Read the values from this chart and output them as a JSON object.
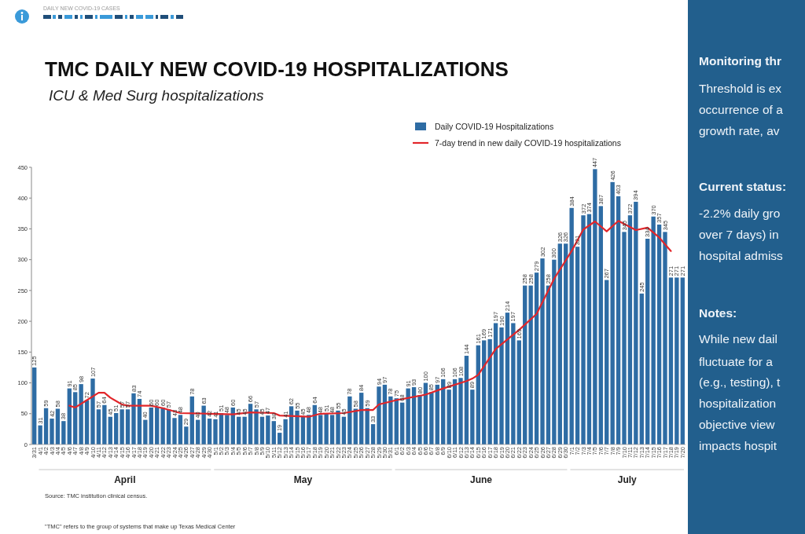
{
  "chart_data": [
    {
      "type": "bar",
      "title": "TMC DAILY NEW COVID-19 HOSPITALIZATIONS",
      "subtitle": "ICU & Med Surg hospitalizations",
      "x": [
        "--03-31",
        "--04-01",
        "--04-02",
        "--04-03",
        "--04-04",
        "--04-05",
        "--04-06",
        "--04-07",
        "--04-08",
        "--04-09",
        "--04-10",
        "--04-11",
        "--04-12",
        "--04-13",
        "--04-14",
        "--04-15",
        "--04-16",
        "--04-17",
        "--04-18",
        "--04-19",
        "--04-20",
        "--04-21",
        "--04-22",
        "--04-23",
        "--04-24",
        "--04-25",
        "--04-26",
        "--04-27",
        "--04-28",
        "--04-29",
        "--04-30",
        "--05-01",
        "--05-02",
        "--05-03",
        "--05-04",
        "--05-05",
        "--05-06",
        "--05-07",
        "--05-08",
        "--05-09",
        "--05-10",
        "--05-11",
        "--05-12",
        "--05-13",
        "--05-14",
        "--05-15",
        "--05-16",
        "--05-17",
        "--05-18",
        "--05-19",
        "--05-20",
        "--05-21",
        "--05-22",
        "--05-23",
        "--05-24",
        "--05-25",
        "--05-26",
        "--05-27",
        "--05-28",
        "--05-29",
        "--05-30",
        "--05-31",
        "--06-01",
        "--06-02",
        "--06-03",
        "--06-04",
        "--06-05",
        "--06-06",
        "--06-07",
        "--06-08",
        "--06-09",
        "--06-10",
        "--06-11",
        "--06-12",
        "--06-13",
        "--06-14",
        "--06-15",
        "--06-16",
        "--06-17",
        "--06-18",
        "--06-19",
        "--06-20",
        "--06-21",
        "--06-22",
        "--06-23",
        "--06-24",
        "--06-25",
        "--06-26",
        "--06-27",
        "--06-28",
        "--06-29",
        "--06-30",
        "--07-01",
        "--07-02",
        "--07-03",
        "--07-04",
        "--07-05",
        "--07-06",
        "--07-07",
        "--07-08",
        "--07-09",
        "--07-10",
        "--07-11",
        "--07-12",
        "--07-13",
        "--07-14",
        "--07-15",
        "--07-16",
        "--07-17",
        "--07-18",
        "--07-19",
        "--07-20"
      ],
      "xlim": [
        "--03-30T12:00",
        "--07-20T12:00"
      ],
      "xticks": [
        {
          "value": "--03-31",
          "label": "3/31"
        },
        {
          "value": "--04-01",
          "label": "4/1"
        },
        {
          "value": "--04-02",
          "label": "4/2"
        },
        {
          "value": "--04-03",
          "label": "4/3"
        },
        {
          "value": "--04-04",
          "label": "4/4"
        },
        {
          "value": "--04-05",
          "label": "4/5"
        },
        {
          "value": "--04-06",
          "label": "4/6"
        },
        {
          "value": "--04-07",
          "label": "4/7"
        },
        {
          "value": "--04-08",
          "label": "4/8"
        },
        {
          "value": "--04-09",
          "label": "4/9"
        },
        {
          "value": "--04-10",
          "label": "4/10"
        },
        {
          "value": "--04-11",
          "label": "4/11"
        },
        {
          "value": "--04-12",
          "label": "4/12"
        },
        {
          "value": "--04-13",
          "label": "4/13"
        },
        {
          "value": "--04-14",
          "label": "4/14"
        },
        {
          "value": "--04-15",
          "label": "4/15"
        },
        {
          "value": "--04-16",
          "label": "4/16"
        },
        {
          "value": "--04-17",
          "label": "4/17"
        },
        {
          "value": "--04-18",
          "label": "4/18"
        },
        {
          "value": "--04-19",
          "label": "4/19"
        },
        {
          "value": "--04-20",
          "label": "4/20"
        },
        {
          "value": "--04-21",
          "label": "4/21"
        },
        {
          "value": "--04-22",
          "label": "4/22"
        },
        {
          "value": "--04-23",
          "label": "4/23"
        },
        {
          "value": "--04-24",
          "label": "4/24"
        },
        {
          "value": "--04-25",
          "label": "4/25"
        },
        {
          "value": "--04-26",
          "label": "4/26"
        },
        {
          "value": "--04-27",
          "label": "4/27"
        },
        {
          "value": "--04-28",
          "label": "4/28"
        },
        {
          "value": "--04-29",
          "label": "4/29"
        },
        {
          "value": "--04-30",
          "label": "4/30"
        },
        {
          "value": "--05-01",
          "label": "5/1"
        },
        {
          "value": "--05-02",
          "label": "5/2"
        },
        {
          "value": "--05-03",
          "label": "5/3"
        },
        {
          "value": "--05-04",
          "label": "5/4"
        },
        {
          "value": "--05-05",
          "label": "5/5"
        },
        {
          "value": "--05-06",
          "label": "5/6"
        },
        {
          "value": "--05-07",
          "label": "5/7"
        },
        {
          "value": "--05-08",
          "label": "5/8"
        },
        {
          "value": "--05-09",
          "label": "5/9"
        },
        {
          "value": "--05-10",
          "label": "5/10"
        },
        {
          "value": "--05-11",
          "label": "5/11"
        },
        {
          "value": "--05-12",
          "label": "5/12"
        },
        {
          "value": "--05-13",
          "label": "5/13"
        },
        {
          "value": "--05-14",
          "label": "5/14"
        },
        {
          "value": "--05-15",
          "label": "5/15"
        },
        {
          "value": "--05-16",
          "label": "5/16"
        },
        {
          "value": "--05-17",
          "label": "5/17"
        },
        {
          "value": "--05-18",
          "label": "5/18"
        },
        {
          "value": "--05-19",
          "label": "5/19"
        },
        {
          "value": "--05-20",
          "label": "5/20"
        },
        {
          "value": "--05-21",
          "label": "5/21"
        },
        {
          "value": "--05-22",
          "label": "5/22"
        },
        {
          "value": "--05-23",
          "label": "5/23"
        },
        {
          "value": "--05-24",
          "label": "5/24"
        },
        {
          "value": "--05-25",
          "label": "5/25"
        },
        {
          "value": "--05-26",
          "label": "5/26"
        },
        {
          "value": "--05-27",
          "label": "5/27"
        },
        {
          "value": "--05-28",
          "label": "5/28"
        },
        {
          "value": "--05-29",
          "label": "5/29"
        },
        {
          "value": "--05-30",
          "label": "5/30"
        },
        {
          "value": "--05-31",
          "label": "5/31"
        },
        {
          "value": "--06-01",
          "label": "6/1"
        },
        {
          "value": "--06-02",
          "label": "6/2"
        },
        {
          "value": "--06-03",
          "label": "6/3"
        },
        {
          "value": "--06-04",
          "label": "6/4"
        },
        {
          "value": "--06-05",
          "label": "6/5"
        },
        {
          "value": "--06-06",
          "label": "6/6"
        },
        {
          "value": "--06-07",
          "label": "6/7"
        },
        {
          "value": "--06-08",
          "label": "6/8"
        },
        {
          "value": "--06-09",
          "label": "6/9"
        },
        {
          "value": "--06-10",
          "label": "6/10"
        },
        {
          "value": "--06-11",
          "label": "6/11"
        },
        {
          "value": "--06-12",
          "label": "6/12"
        },
        {
          "value": "--06-13",
          "label": "6/13"
        },
        {
          "value": "--06-14",
          "label": "6/14"
        },
        {
          "value": "--06-15",
          "label": "6/15"
        },
        {
          "value": "--06-16",
          "label": "6/16"
        },
        {
          "value": "--06-17",
          "label": "6/17"
        },
        {
          "value": "--06-18",
          "label": "6/18"
        },
        {
          "value": "--06-19",
          "label": "6/19"
        },
        {
          "value": "--06-20",
          "label": "6/20"
        },
        {
          "value": "--06-21",
          "label": "6/21"
        },
        {
          "value": "--06-22",
          "label": "6/22"
        },
        {
          "value": "--06-23",
          "label": "6/23"
        },
        {
          "value": "--06-24",
          "label": "6/24"
        },
        {
          "value": "--06-25",
          "label": "6/25"
        },
        {
          "value": "--06-26",
          "label": "6/26"
        },
        {
          "value": "--06-27",
          "label": "6/27"
        },
        {
          "value": "--06-28",
          "label": "6/28"
        },
        {
          "value": "--06-29",
          "label": "6/29"
        },
        {
          "value": "--06-30",
          "label": "6/30"
        },
        {
          "value": "--07-01",
          "label": "7/1"
        },
        {
          "value": "--07-02",
          "label": "7/2"
        },
        {
          "value": "--07-03",
          "label": "7/3"
        },
        {
          "value": "--07-04",
          "label": "7/4"
        },
        {
          "value": "--07-05",
          "label": "7/5"
        },
        {
          "value": "--07-06",
          "label": "7/6"
        },
        {
          "value": "--07-07",
          "label": "7/7"
        },
        {
          "value": "--07-08",
          "label": "7/8"
        },
        {
          "value": "--07-09",
          "label": "7/9"
        },
        {
          "value": "--07-10",
          "label": "7/10"
        },
        {
          "value": "--07-11",
          "label": "7/11"
        },
        {
          "value": "--07-12",
          "label": "7/12"
        },
        {
          "value": "--07-13",
          "label": "7/13"
        },
        {
          "value": "--07-14",
          "label": "7/14"
        },
        {
          "value": "--07-15",
          "label": "7/15"
        },
        {
          "value": "--07-16",
          "label": "7/16"
        },
        {
          "value": "--07-17",
          "label": "7/17"
        },
        {
          "value": "--07-18",
          "label": "7/18"
        },
        {
          "value": "--07-19",
          "label": "7/19"
        },
        {
          "value": "--07-20",
          "label": "7/20"
        }
      ],
      "ylim": [
        0,
        450
      ],
      "yticks": [
        0,
        50,
        100,
        150,
        200,
        250,
        300,
        350,
        400,
        450
      ],
      "series": [
        {
          "name": "Daily COVID-19 Hospitalizations",
          "type": "bar",
          "color": "#2e6ca4",
          "values": [
            125,
            31,
            59,
            42,
            58,
            38,
            91,
            85,
            98,
            72,
            107,
            57,
            64,
            45,
            51,
            57,
            57,
            83,
            74,
            40,
            60,
            60,
            60,
            57,
            43,
            48,
            29,
            78,
            40,
            63,
            42,
            41,
            51,
            48,
            60,
            45,
            45,
            66,
            57,
            45,
            47,
            38,
            19,
            41,
            62,
            55,
            45,
            48,
            64,
            48,
            51,
            48,
            55,
            45,
            78,
            58,
            84,
            59,
            33,
            94,
            97,
            78,
            75,
            68,
            91,
            93,
            80,
            100,
            85,
            97,
            106,
            89,
            106,
            108,
            144,
            89,
            161,
            169,
            171,
            197,
            190,
            214,
            197,
            169,
            258,
            258,
            279,
            302,
            258,
            300,
            326,
            326,
            384,
            321,
            372,
            374,
            447,
            387,
            267,
            426,
            403,
            345,
            372,
            394,
            245,
            334,
            370,
            357,
            345,
            271,
            271,
            271
          ],
          "value_labels": [
            "125",
            "31",
            "59",
            "42",
            "58",
            "38",
            "91",
            "85",
            "98",
            "72",
            "107",
            "57",
            "64",
            "45",
            "51",
            "57",
            "57",
            "83",
            "74",
            "40",
            "60",
            "60",
            "60",
            "57",
            "43",
            "48",
            "29",
            "78",
            "40",
            "63",
            "42",
            "41",
            "51",
            "48",
            "60",
            "45",
            "45",
            "66",
            "57",
            "45",
            "47",
            "38",
            "19",
            "41",
            "62",
            "55",
            "45",
            "48",
            "64",
            "48",
            "51",
            "48",
            "55",
            "45",
            "78",
            "58",
            "84",
            "59",
            "33",
            "94",
            "97",
            "78",
            "75",
            "68",
            "91",
            "93",
            "80",
            "100",
            "85",
            "97",
            "106",
            "89",
            "106",
            "108",
            "144",
            "89",
            "161",
            "169",
            "171",
            "197",
            "190",
            "214",
            "197",
            "169",
            "258",
            "258",
            "279",
            "302",
            "258",
            "300",
            "326",
            "326",
            "384",
            "321",
            "372",
            "374",
            "447",
            "387",
            "267",
            "426",
            "403",
            "345",
            "372",
            "394",
            "245",
            "334",
            "370",
            "357",
            "345",
            "271",
            "271",
            "271"
          ]
        },
        {
          "name": "7-day trend in new daily COVID-19 hospitalizations",
          "type": "line",
          "color": "#e2262a",
          "x": [
            "--04-06",
            "--04-07",
            "--04-09",
            "--04-11",
            "--04-12",
            "--04-13",
            "--04-15",
            "--04-16",
            "--04-20",
            "--04-22",
            "--04-25",
            "--04-30",
            "--05-04",
            "--05-07",
            "--05-11",
            "--05-12",
            "--05-17",
            "--05-19",
            "--05-23",
            "--05-26",
            "--05-28",
            "--05-29",
            "--06-01",
            "--06-06",
            "--06-09",
            "--06-13",
            "--06-14",
            "--06-15",
            "--06-18",
            "--06-22",
            "--06-25",
            "--06-28",
            "--07-01",
            "--07-03",
            "--07-05",
            "--07-07",
            "--07-09",
            "--07-12",
            "--07-14",
            "--07-16",
            "--07-18"
          ],
          "values": [
            63,
            60,
            72,
            84,
            84,
            76,
            65,
            63,
            63,
            59,
            51,
            50,
            49,
            52,
            51,
            47,
            45,
            50,
            51,
            56,
            56,
            65,
            72,
            81,
            91,
            103,
            107,
            113,
            155,
            186,
            212,
            269,
            314,
            349,
            362,
            346,
            363,
            348,
            352,
            336,
            314
          ]
        }
      ],
      "legend": "top right",
      "annotations": [
        "DAILY NEW COVID-19 CASES",
        "April",
        "May",
        "June",
        "July",
        "Source: TMC institution clinical census.",
        "\"TMC\" refers to the group of systems that make up Texas Medical Center"
      ]
    },
    {
      "type": "other",
      "annotations": [
        "Monitoring thr",
        "Threshold is ex",
        "occurrence of a",
        "growth rate, av",
        "Current status:",
        "-2.2% daily gro",
        "over 7 days) in",
        "hospital admiss",
        "Notes:",
        "While new dail",
        "fluctuate for a",
        "(e.g., testing), t",
        "hospitalization",
        "objective view",
        "impacts hospit"
      ]
    }
  ]
}
